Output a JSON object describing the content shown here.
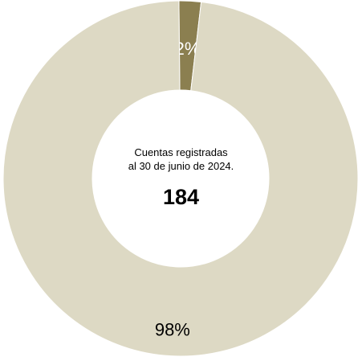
{
  "chart_data": {
    "type": "pie",
    "variant": "donut",
    "categories": [
      "",
      ""
    ],
    "values": [
      2,
      98
    ],
    "labels": [
      "2%",
      "98%"
    ],
    "colors": [
      "#8b7f50",
      "#ddd9c4"
    ],
    "label_colors": [
      "#ffffff",
      "#000000"
    ],
    "start": "top",
    "center": {
      "caption_line1": "Cuentas registradas",
      "caption_line2": "al 30 de junio de 2024.",
      "value": "184"
    }
  }
}
